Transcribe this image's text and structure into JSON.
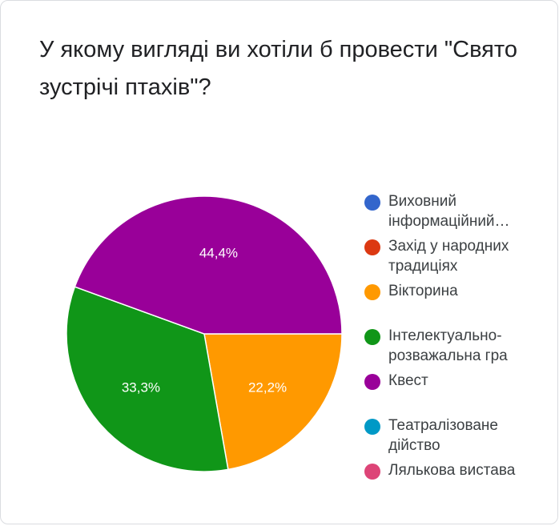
{
  "question": "У якому вигляді ви хотіли б провести \"Свято зустрічі птахів\"?",
  "chart_data": {
    "type": "pie",
    "categories": [
      "Виховний інформаційний…",
      "Захід у народних традиціях",
      "Вікторина",
      "Інтелектуально-розважальна гра",
      "Квест",
      "Театралізоване дійство",
      "Лялькова вистава"
    ],
    "values": [
      0,
      0,
      22.2,
      33.3,
      44.4,
      0,
      0
    ],
    "slice_labels": [
      "",
      "",
      "22,2%",
      "33,3%",
      "44,4%",
      "",
      ""
    ],
    "colors": [
      "#3366cc",
      "#dc3912",
      "#ff9900",
      "#109618",
      "#990099",
      "#0099c6",
      "#dd4477"
    ],
    "legend_position": "right"
  }
}
